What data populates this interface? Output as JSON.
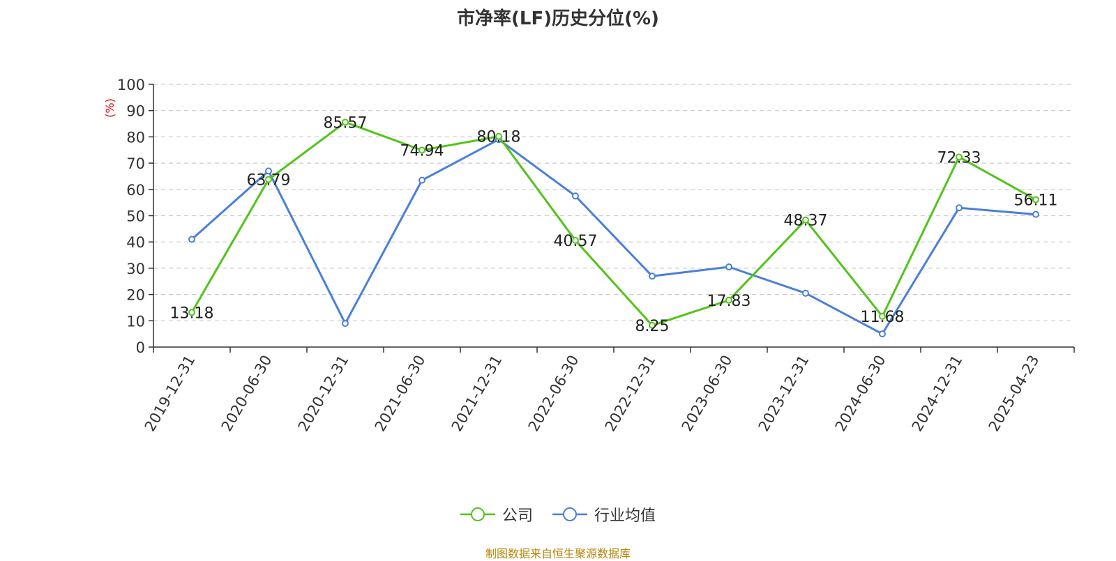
{
  "chart_data": {
    "type": "line",
    "title": "市净率(LF)历史分位(%)",
    "ylabel": "(%)",
    "ylim": [
      0,
      100
    ],
    "yticks": [
      0,
      10,
      20,
      30,
      40,
      50,
      60,
      70,
      80,
      90,
      100
    ],
    "categories": [
      "2019-12-31",
      "2020-06-30",
      "2020-12-31",
      "2021-06-30",
      "2021-12-31",
      "2022-06-30",
      "2022-12-31",
      "2023-06-30",
      "2023-12-31",
      "2024-06-30",
      "2024-12-31",
      "2025-04-23"
    ],
    "series": [
      {
        "name": "公司",
        "color": "#52c41a",
        "values": [
          13.18,
          63.79,
          85.57,
          74.94,
          80.18,
          40.57,
          8.25,
          17.83,
          48.37,
          11.68,
          72.33,
          56.11
        ],
        "labels": [
          "13.18",
          "63.79",
          "85.57",
          "74.94",
          "80.18",
          "40.57",
          "8.25",
          "17.83",
          "48.37",
          "11.68",
          "72.33",
          "56.11"
        ]
      },
      {
        "name": "行业均值",
        "color": "#4a7fdb",
        "values": [
          41,
          67,
          9,
          63.5,
          79,
          57.5,
          27,
          30.5,
          20.5,
          5,
          53,
          50.5
        ]
      }
    ],
    "grid": true,
    "legend_position": "bottom-center"
  },
  "source_note": "制图数据来自恒生聚源数据库"
}
